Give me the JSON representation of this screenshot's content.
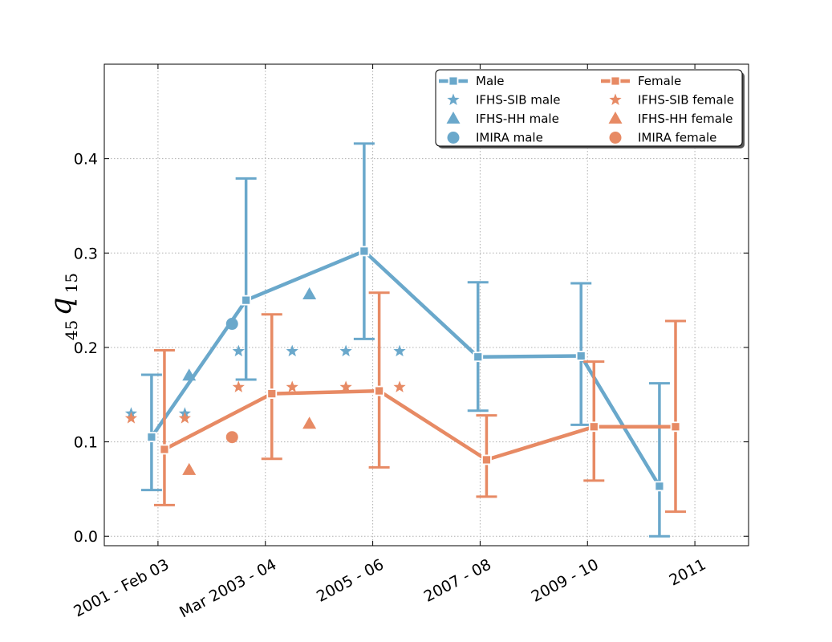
{
  "chart_data": {
    "type": "line",
    "ylabel": {
      "pre": "45",
      "main": "q",
      "sub": "15"
    },
    "ylim": [
      -0.01,
      0.5
    ],
    "xlim": [
      -0.5,
      5.5
    ],
    "yticks": [
      0.0,
      0.1,
      0.2,
      0.3,
      0.4
    ],
    "ytick_labels": [
      "0.0",
      "0.1",
      "0.2",
      "0.3",
      "0.4"
    ],
    "xticks": [
      0,
      1,
      2,
      3,
      4,
      5
    ],
    "xtick_labels": [
      "2001 - Feb 03",
      "Mar 2003 - 04",
      "2005 - 06",
      "2007 - 08",
      "2009 - 10",
      "2011"
    ],
    "grid": true,
    "legend_position": "upper-right",
    "colors": {
      "male": "#6aa8cb",
      "female": "#e78a64"
    },
    "series": [
      {
        "name": "Male",
        "color_key": "male",
        "marker": "square",
        "x": [
          -0.06,
          0.82,
          1.92,
          2.98,
          3.94,
          4.67
        ],
        "y": [
          0.105,
          0.25,
          0.302,
          0.19,
          0.191,
          0.053
        ],
        "err_low": [
          0.049,
          0.166,
          0.209,
          0.133,
          0.118,
          0.0
        ],
        "err_high": [
          0.171,
          0.379,
          0.416,
          0.269,
          0.268,
          0.162
        ]
      },
      {
        "name": "Female",
        "color_key": "female",
        "marker": "square",
        "x": [
          0.06,
          0.06,
          1.06,
          2.06,
          3.06,
          3.94,
          4.82
        ],
        "y": [
          0.092,
          0.092,
          0.151,
          0.154,
          0.081,
          0.116,
          0.116
        ],
        "x_line": [
          0.06,
          1.06,
          2.06,
          3.06,
          4.06,
          4.82
        ],
        "y_line": [
          0.092,
          0.151,
          0.154,
          0.081,
          0.116,
          0.116
        ],
        "err_low": [
          0.033,
          0.082,
          0.073,
          0.042,
          0.059,
          0.026
        ],
        "err_high": [
          0.197,
          0.235,
          0.258,
          0.128,
          0.185,
          0.228
        ]
      }
    ],
    "scatter": [
      {
        "name": "IFHS-SIB male",
        "color_key": "male",
        "marker": "star",
        "x": [
          -0.25,
          0.25,
          0.75,
          1.25,
          1.75,
          2.25
        ],
        "y": [
          0.13,
          0.13,
          0.196,
          0.196,
          0.196,
          0.196
        ]
      },
      {
        "name": "IFHS-HH male",
        "color_key": "male",
        "marker": "triangle",
        "x": [
          0.29,
          1.41
        ],
        "y": [
          0.17,
          0.256
        ]
      },
      {
        "name": "IMIRA male",
        "color_key": "male",
        "marker": "circle",
        "x": [
          0.69
        ],
        "y": [
          0.225
        ]
      },
      {
        "name": "IFHS-SIB female",
        "color_key": "female",
        "marker": "star",
        "x": [
          -0.25,
          0.25,
          0.75,
          1.25,
          1.75,
          2.25
        ],
        "y": [
          0.125,
          0.125,
          0.158,
          0.158,
          0.158,
          0.158
        ]
      },
      {
        "name": "IFHS-HH female",
        "color_key": "female",
        "marker": "triangle",
        "x": [
          0.29,
          1.41
        ],
        "y": [
          0.07,
          0.119
        ]
      },
      {
        "name": "IMIRA female",
        "color_key": "female",
        "marker": "circle",
        "x": [
          0.69
        ],
        "y": [
          0.105
        ]
      }
    ],
    "legend": [
      {
        "label": "Male",
        "color_key": "male",
        "marker": "line-square"
      },
      {
        "label": "Female",
        "color_key": "female",
        "marker": "line-square"
      },
      {
        "label": "IFHS-SIB male",
        "color_key": "male",
        "marker": "star"
      },
      {
        "label": "IFHS-SIB female",
        "color_key": "female",
        "marker": "star"
      },
      {
        "label": "IFHS-HH male",
        "color_key": "male",
        "marker": "triangle"
      },
      {
        "label": "IFHS-HH female",
        "color_key": "female",
        "marker": "triangle"
      },
      {
        "label": "IMIRA male",
        "color_key": "male",
        "marker": "circle"
      },
      {
        "label": "IMIRA female",
        "color_key": "female",
        "marker": "circle"
      }
    ]
  }
}
